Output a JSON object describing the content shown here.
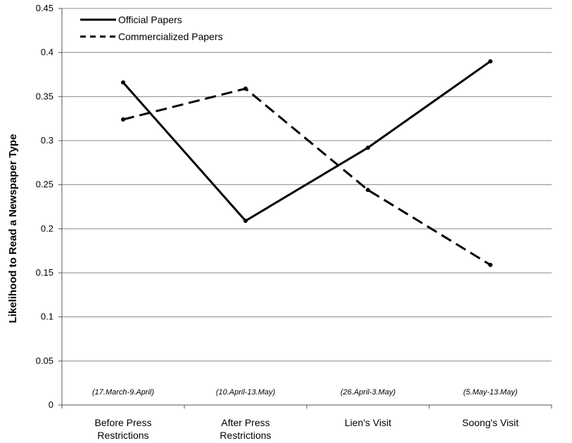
{
  "chart_data": {
    "type": "line",
    "title": "",
    "xlabel": "",
    "ylabel": "Likelihood to Read a Newspaper Type",
    "ylim": [
      0,
      0.45
    ],
    "yticks": [
      "0",
      "0.05",
      "0.1",
      "0.15",
      "0.2",
      "0.25",
      "0.3",
      "0.35",
      "0.4",
      "0.45"
    ],
    "categories": [
      [
        "Before Press",
        "Restrictions"
      ],
      [
        "After Press",
        "Restrictions"
      ],
      [
        "Lien's Visit"
      ],
      [
        "Soong's Visit"
      ]
    ],
    "periods": [
      "(17.March-9.April)",
      "(10.April-13.May)",
      "(26.April-3.May)",
      "(5.May-13.May)"
    ],
    "series": [
      {
        "name": "Official Papers",
        "style": "solid",
        "values": [
          0.366,
          0.209,
          0.292,
          0.39
        ]
      },
      {
        "name": "Commercialized Papers",
        "style": "dashed",
        "values": [
          0.324,
          0.359,
          0.244,
          0.159
        ]
      }
    ],
    "grid": true,
    "legend_position": "top-left"
  }
}
